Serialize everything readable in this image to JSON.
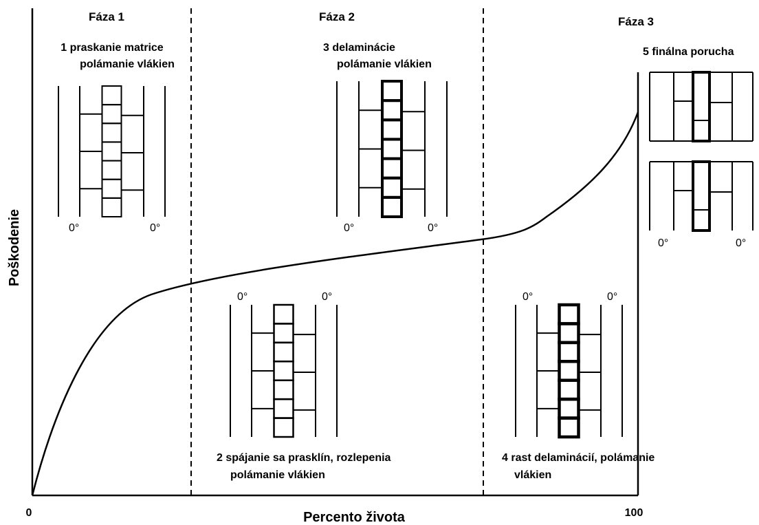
{
  "axes": {
    "y_label": "Poškodenie",
    "x_label": "Percento života",
    "x_start": "0",
    "x_end": "100"
  },
  "phases": [
    {
      "title": "Fáza 1"
    },
    {
      "title": "Fáza 2"
    },
    {
      "title": "Fáza 3"
    }
  ],
  "stages": [
    {
      "lines": [
        "1 praskanie matrice",
        "polámanie vlákien"
      ],
      "ply_labels": [
        "0°",
        "0°"
      ]
    },
    {
      "lines": [
        "2 spájanie sa prasklín, rozlepenia",
        "polámanie vlákien"
      ],
      "ply_labels": [
        "0°",
        "0°"
      ]
    },
    {
      "lines": [
        "3 delaminácie",
        "polámanie vlákien"
      ],
      "ply_labels": [
        "0°",
        "0°"
      ]
    },
    {
      "lines": [
        "4 rast delaminácií, polámanie",
        "vlákien"
      ],
      "ply_labels": [
        "0°",
        "0°"
      ]
    },
    {
      "lines": [
        "5 finálna porucha"
      ],
      "ply_labels": [
        "0°",
        "0°"
      ]
    }
  ]
}
